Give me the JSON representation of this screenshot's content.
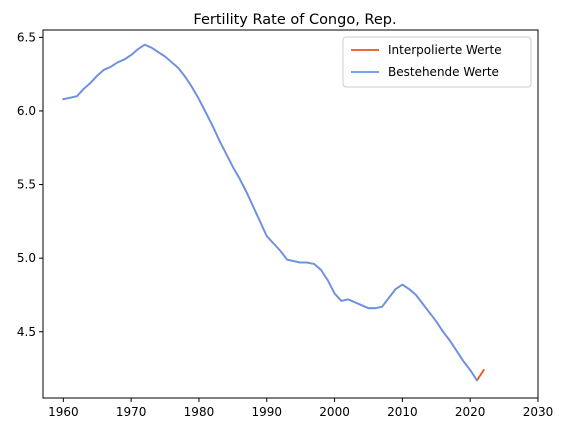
{
  "chart_data": {
    "type": "line",
    "title": "Fertility Rate of Congo, Rep.",
    "xlabel": "",
    "ylabel": "",
    "xlim": [
      1957,
      2030
    ],
    "ylim": [
      4.05,
      6.55
    ],
    "x_ticks": [
      1960,
      1970,
      1980,
      1990,
      2000,
      2010,
      2020,
      2030
    ],
    "x_tick_labels": [
      "1960",
      "1970",
      "1980",
      "1990",
      "2000",
      "2010",
      "2020",
      "2030"
    ],
    "y_ticks": [
      4.5,
      5.0,
      5.5,
      6.0,
      6.5
    ],
    "y_tick_labels": [
      "4.5",
      "5.0",
      "5.5",
      "6.0",
      "6.5"
    ],
    "grid": false,
    "legend_position": "top-right",
    "series": [
      {
        "name": "Interpolierte Werte",
        "color": "#E8541E",
        "x": [
          1960,
          1961,
          1962,
          1963,
          1964,
          1965,
          1966,
          1967,
          1968,
          1969,
          1970,
          1971,
          1972,
          1973,
          1974,
          1975,
          1976,
          1977,
          1978,
          1979,
          1980,
          1981,
          1982,
          1983,
          1984,
          1985,
          1986,
          1987,
          1988,
          1989,
          1990,
          1991,
          1992,
          1993,
          1994,
          1995,
          1996,
          1997,
          1998,
          1999,
          2000,
          2001,
          2002,
          2003,
          2004,
          2005,
          2006,
          2007,
          2008,
          2009,
          2010,
          2011,
          2012,
          2013,
          2014,
          2015,
          2016,
          2017,
          2018,
          2019,
          2020,
          2021,
          2022
        ],
        "y": [
          6.08,
          6.09,
          6.1,
          6.15,
          6.19,
          6.24,
          6.28,
          6.3,
          6.33,
          6.35,
          6.38,
          6.42,
          6.45,
          6.43,
          6.4,
          6.37,
          6.33,
          6.29,
          6.23,
          6.16,
          6.08,
          5.99,
          5.9,
          5.8,
          5.71,
          5.62,
          5.54,
          5.45,
          5.35,
          5.25,
          5.15,
          5.1,
          5.05,
          4.99,
          4.98,
          4.97,
          4.97,
          4.96,
          4.92,
          4.85,
          4.76,
          4.71,
          4.72,
          4.7,
          4.68,
          4.66,
          4.66,
          4.67,
          4.73,
          4.79,
          4.82,
          4.79,
          4.75,
          4.69,
          4.63,
          4.57,
          4.5,
          4.44,
          4.37,
          4.3,
          4.24,
          4.17,
          4.24
        ]
      },
      {
        "name": "Bestehende Werte",
        "color": "#6495ED",
        "x": [
          1960,
          1961,
          1962,
          1963,
          1964,
          1965,
          1966,
          1967,
          1968,
          1969,
          1970,
          1971,
          1972,
          1973,
          1974,
          1975,
          1976,
          1977,
          1978,
          1979,
          1980,
          1981,
          1982,
          1983,
          1984,
          1985,
          1986,
          1987,
          1988,
          1989,
          1990,
          1991,
          1992,
          1993,
          1994,
          1995,
          1996,
          1997,
          1998,
          1999,
          2000,
          2001,
          2002,
          2003,
          2004,
          2005,
          2006,
          2007,
          2008,
          2009,
          2010,
          2011,
          2012,
          2013,
          2014,
          2015,
          2016,
          2017,
          2018,
          2019,
          2020,
          2021
        ],
        "y": [
          6.08,
          6.09,
          6.1,
          6.15,
          6.19,
          6.24,
          6.28,
          6.3,
          6.33,
          6.35,
          6.38,
          6.42,
          6.45,
          6.43,
          6.4,
          6.37,
          6.33,
          6.29,
          6.23,
          6.16,
          6.08,
          5.99,
          5.9,
          5.8,
          5.71,
          5.62,
          5.54,
          5.45,
          5.35,
          5.25,
          5.15,
          5.1,
          5.05,
          4.99,
          4.98,
          4.97,
          4.97,
          4.96,
          4.92,
          4.85,
          4.76,
          4.71,
          4.72,
          4.7,
          4.68,
          4.66,
          4.66,
          4.67,
          4.73,
          4.79,
          4.82,
          4.79,
          4.75,
          4.69,
          4.63,
          4.57,
          4.5,
          4.44,
          4.37,
          4.3,
          4.24,
          4.17
        ]
      }
    ]
  }
}
